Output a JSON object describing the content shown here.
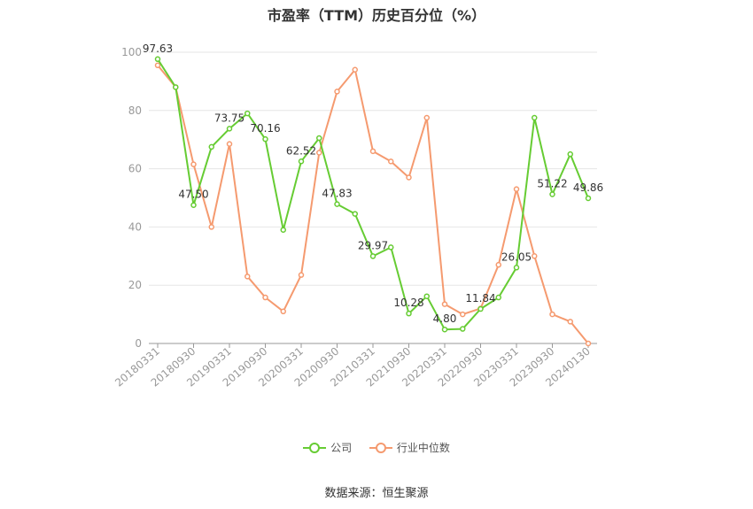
{
  "chart_data": {
    "type": "line",
    "title": "市盈率（TTM）历史百分位（%）",
    "source": "数据来源：恒生聚源",
    "ylim": [
      0,
      100
    ],
    "yticks": [
      0,
      20,
      40,
      60,
      80,
      100
    ],
    "grid": true,
    "legend_position": "bottom",
    "x_tick_labels": [
      "20180331",
      "20180930",
      "20190331",
      "20190930",
      "20200331",
      "20200930",
      "20210331",
      "20210930",
      "20220331",
      "20220930",
      "20230331",
      "20230930",
      "20240130"
    ],
    "x": [
      "20180331",
      "20180630",
      "20180930",
      "20181231",
      "20190331",
      "20190630",
      "20190930",
      "20191231",
      "20200331",
      "20200630",
      "20200930",
      "20201231",
      "20210331",
      "20210630",
      "20210930",
      "20211231",
      "20220331",
      "20220630",
      "20220930",
      "20221231",
      "20230331",
      "20230630",
      "20230930",
      "20231231",
      "20240130"
    ],
    "series": [
      {
        "name": "公司",
        "color": "#66cc33",
        "values": [
          97.63,
          88,
          47.5,
          67.5,
          73.75,
          79,
          70.16,
          39,
          62.52,
          70.5,
          47.83,
          44.5,
          29.97,
          33,
          10.28,
          16.2,
          4.8,
          5,
          11.84,
          15.8,
          26.05,
          77.5,
          51.22,
          65,
          49.86
        ],
        "labels": {
          "0": "97.63",
          "2": "47.50",
          "4": "73.75",
          "6": "70.16",
          "8": "62.52",
          "10": "47.83",
          "12": "29.97",
          "14": "10.28",
          "16": "4.80",
          "18": "11.84",
          "20": "26.05",
          "22": "51.22",
          "24": "49.86"
        }
      },
      {
        "name": "行业中位数",
        "color": "#f59a6f",
        "values": [
          95.5,
          88,
          61.5,
          40,
          68.5,
          23,
          15.8,
          11,
          23.5,
          65.5,
          86.5,
          94,
          66,
          62.5,
          57,
          77.5,
          13.5,
          10,
          12,
          27,
          53,
          30,
          10,
          7.5,
          0
        ]
      }
    ]
  }
}
